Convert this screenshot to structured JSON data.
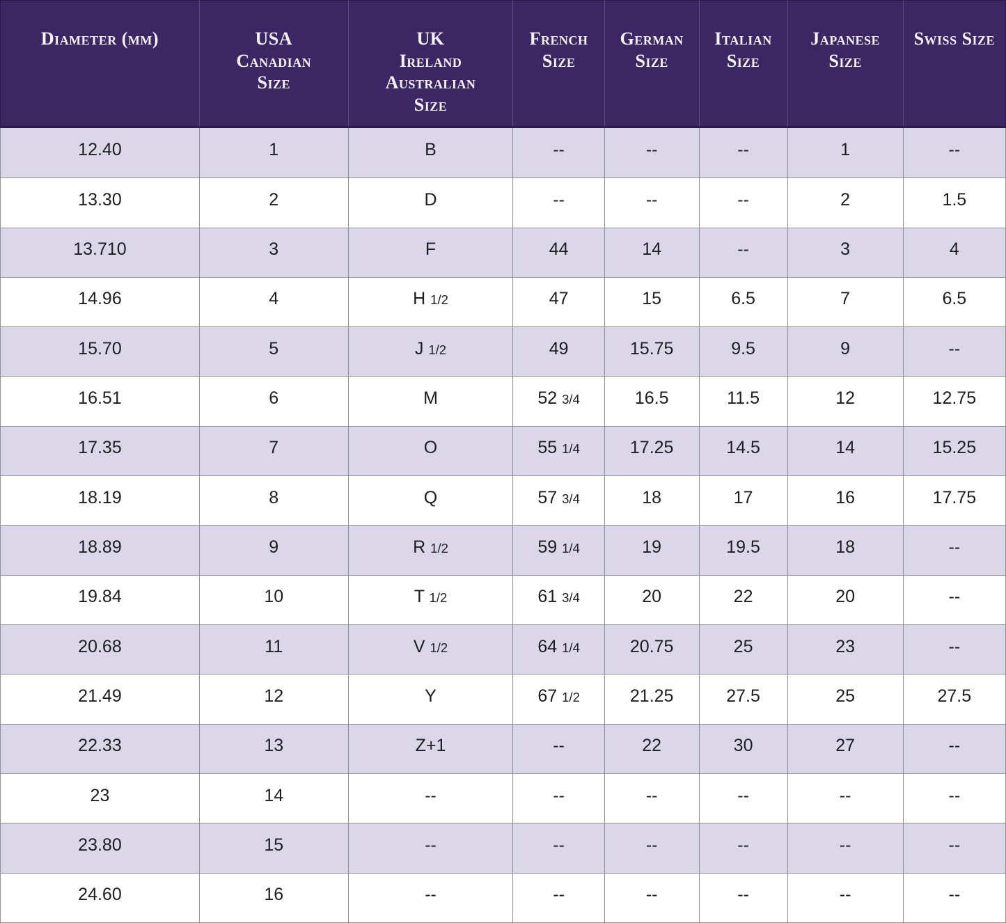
{
  "chart_data": {
    "type": "table",
    "columns": [
      {
        "id": "diameter",
        "label": "Diameter (mm)"
      },
      {
        "id": "usa",
        "label": "USA\nCanadian\nSize"
      },
      {
        "id": "uk",
        "label": "UK\nIreland\nAustralian\nSize"
      },
      {
        "id": "french",
        "label": "French\nSize"
      },
      {
        "id": "german",
        "label": "German\nSize"
      },
      {
        "id": "italian",
        "label": "Italian\nSize"
      },
      {
        "id": "japanese",
        "label": "Japanese Size"
      },
      {
        "id": "swiss",
        "label": "Swiss Size"
      }
    ],
    "empty_marker": "--",
    "rows": [
      [
        "12.40",
        "1",
        "B",
        "--",
        "--",
        "--",
        "1",
        "--"
      ],
      [
        "13.30",
        "2",
        "D",
        "--",
        "--",
        "--",
        "2",
        "1.5"
      ],
      [
        "13.710",
        "3",
        "F",
        "44",
        "14",
        "--",
        "3",
        "4"
      ],
      [
        "14.96",
        "4",
        "H 1/2",
        "47",
        "15",
        "6.5",
        "7",
        "6.5"
      ],
      [
        "15.70",
        "5",
        "J 1/2",
        "49",
        "15.75",
        "9.5",
        "9",
        "--"
      ],
      [
        "16.51",
        "6",
        "M",
        "52 3/4",
        "16.5",
        "11.5",
        "12",
        "12.75"
      ],
      [
        "17.35",
        "7",
        "O",
        "55 1/4",
        "17.25",
        "14.5",
        "14",
        "15.25"
      ],
      [
        "18.19",
        "8",
        "Q",
        "57 3/4",
        "18",
        "17",
        "16",
        "17.75"
      ],
      [
        "18.89",
        "9",
        "R 1/2",
        "59 1/4",
        "19",
        "19.5",
        "18",
        "--"
      ],
      [
        "19.84",
        "10",
        "T 1/2",
        "61 3/4",
        "20",
        "22",
        "20",
        "--"
      ],
      [
        "20.68",
        "11",
        "V 1/2",
        "64 1/4",
        "20.75",
        "25",
        "23",
        "--"
      ],
      [
        "21.49",
        "12",
        "Y",
        "67 1/2",
        "21.25",
        "27.5",
        "25",
        "27.5"
      ],
      [
        "22.33",
        "13",
        "Z+1",
        "--",
        "22",
        "30",
        "27",
        "--"
      ],
      [
        "23",
        "14",
        "--",
        "--",
        "--",
        "--",
        "--",
        "--"
      ],
      [
        "23.80",
        "15",
        "--",
        "--",
        "--",
        "--",
        "--",
        "--"
      ],
      [
        "24.60",
        "16",
        "--",
        "--",
        "--",
        "--",
        "--",
        "--"
      ]
    ],
    "column_width_percents": [
      19.8,
      14.8,
      16.4,
      9.1,
      9.4,
      8.8,
      11.5,
      10.2
    ],
    "colors": {
      "header_bg": "#3c2663",
      "header_text": "#f6f3fa",
      "row_alt_bg": "#dcd6e9",
      "row_bg": "#ffffff",
      "body_text": "#1d1d1f",
      "grid_line": "#8f8f8f"
    }
  }
}
